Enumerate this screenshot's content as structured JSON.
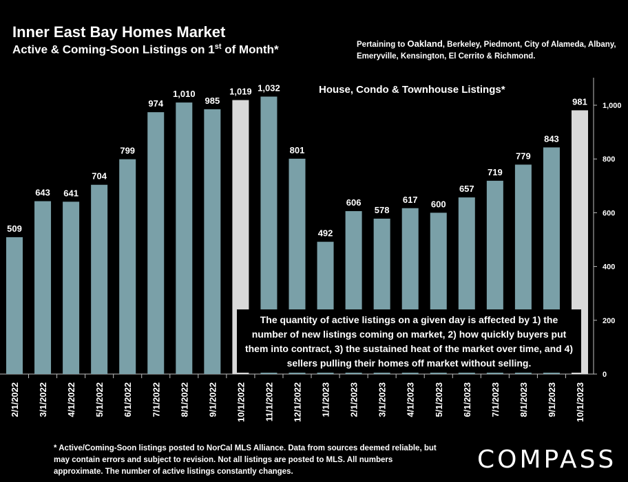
{
  "header": {
    "title": "Inner East Bay Homes Market",
    "subtitle_main": "Active & Coming-Soon Listings on 1",
    "subtitle_sup": "st",
    "subtitle_end": " of Month*",
    "pertaining_prefix": "Pertaining to ",
    "pertaining_city": "Oakland",
    "pertaining_rest": ", Berkeley, Piedmont, City of Alameda, Albany, Emeryville, Kensington, El Cerrito & Richmond."
  },
  "chart_data": {
    "type": "bar",
    "title": "",
    "series_name": "House, Condo & Townhouse Listings*",
    "categories": [
      "2/1/2022",
      "3/1/2022",
      "4/1/2022",
      "5/1/2022",
      "6/1/2022",
      "7/1/2022",
      "8/1/2022",
      "9/1/2022",
      "10/1/2022",
      "11/1/2022",
      "12/1/2022",
      "1/1/2023",
      "2/1/2023",
      "3/1/2023",
      "4/1/2023",
      "5/1/2023",
      "6/1/2023",
      "7/1/2023",
      "8/1/2023",
      "9/1/2023",
      "10/1/2023"
    ],
    "values": [
      509,
      643,
      641,
      704,
      799,
      974,
      1010,
      985,
      1019,
      1032,
      801,
      492,
      606,
      578,
      617,
      600,
      657,
      719,
      779,
      843,
      981
    ],
    "value_labels": [
      "509",
      "643",
      "641",
      "704",
      "799",
      "974",
      "1,010",
      "985",
      "1,019",
      "1,032",
      "801",
      "492",
      "606",
      "578",
      "617",
      "600",
      "657",
      "719",
      "779",
      "843",
      "981"
    ],
    "highlighted": [
      "10/1/2022",
      "10/1/2023"
    ],
    "ylim": [
      0,
      1100
    ],
    "yticks": [
      0,
      200,
      400,
      600,
      800,
      1000
    ],
    "ytick_labels": [
      "0",
      "200",
      "400",
      "600",
      "800",
      "1,000"
    ],
    "y_axis_side": "right",
    "grid": false,
    "colors": {
      "bar": "#7aa0a8",
      "highlight": "#d9d9d9",
      "axis": "#bfbfbf"
    }
  },
  "annotation": "The quantity of active listings on a given day is affected by 1) the number of new listings coming on market, 2) how quickly buyers put them into contract, 3) the sustained heat of the market over time, and 4) sellers pulling their homes off market without selling.",
  "footnote": "* Active/Coming-Soon listings posted to NorCal MLS Alliance.  Data from sources deemed reliable, but may contain errors and subject to revision.  Not all listings are posted to MLS. All numbers approximate. The number of active listings constantly changes.",
  "logo": "COMPASS"
}
